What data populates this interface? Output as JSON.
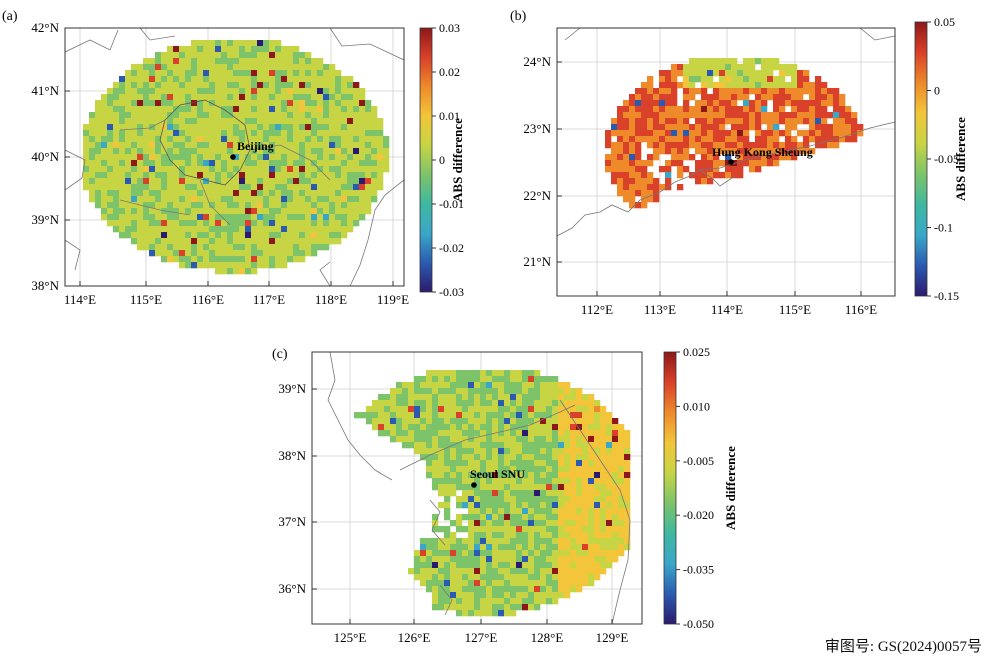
{
  "footer_text": "审图号: GS(2024)0057号",
  "panels": [
    {
      "label": "(a)",
      "city": "Beijing",
      "lon_ticks": [
        "114°E",
        "115°E",
        "116°E",
        "117°E",
        "118°E",
        "119°E"
      ],
      "lat_ticks": [
        "42°N",
        "41°N",
        "40°N",
        "39°N",
        "38°N"
      ],
      "colorbar": {
        "title": "ABS difference",
        "ticks": [
          "0.03",
          "0.02",
          "0.01",
          "0",
          "-0.01",
          "-0.02",
          "-0.03"
        ]
      }
    },
    {
      "label": "(b)",
      "city": "Hung Kong Sheung",
      "lon_ticks": [
        "112°E",
        "113°E",
        "114°E",
        "115°E",
        "116°E"
      ],
      "lat_ticks": [
        "24°N",
        "23°N",
        "22°N",
        "21°N"
      ],
      "colorbar": {
        "title": "ABS difference",
        "ticks": [
          "0.05",
          "0",
          "-0.05",
          "-0.1",
          "-0.15"
        ]
      }
    },
    {
      "label": "(c)",
      "city": "Seoul SNU",
      "lon_ticks": [
        "125°E",
        "126°E",
        "127°E",
        "128°E",
        "129°E"
      ],
      "lat_ticks": [
        "39°N",
        "38°N",
        "37°N",
        "36°N"
      ],
      "colorbar": {
        "title": "ABS difference",
        "ticks": [
          "0.025",
          "0.010",
          "-0.005",
          "-0.020",
          "-0.035",
          "-0.050"
        ]
      }
    }
  ],
  "colors": {
    "colormap": [
      "#2b1a6e",
      "#2b5bb0",
      "#3aa7c9",
      "#3fb8a0",
      "#7cc36a",
      "#c7d544",
      "#f2c53a",
      "#ee8a2a",
      "#d9412a",
      "#8e1818"
    ],
    "frame": "#333333",
    "grid": "#cfcfcf",
    "coast": "#777777"
  }
}
